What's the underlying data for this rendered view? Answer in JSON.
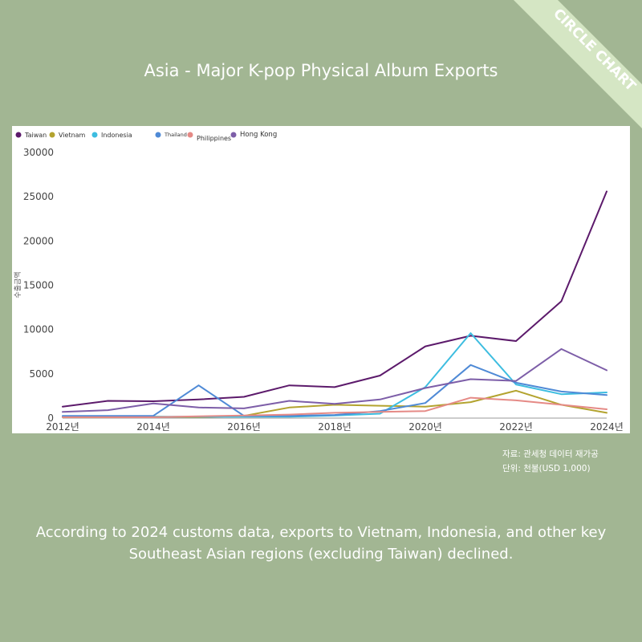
{
  "brand": {
    "ribbon_label": "CIRCLE CHART",
    "ribbon_color": "#d5e6c4"
  },
  "title": "Asia - Major K-pop Physical Album Exports",
  "chart_data": {
    "type": "line",
    "title": "",
    "xlabel": "",
    "ylabel": "수출금액",
    "x": [
      2012,
      2013,
      2014,
      2015,
      2016,
      2017,
      2018,
      2019,
      2020,
      2021,
      2022,
      2023,
      2024
    ],
    "x_tick_labels": [
      "2012년",
      "2014년",
      "2016년",
      "2018년",
      "2020년",
      "2022년",
      "2024년"
    ],
    "y_ticks": [
      0,
      5000,
      10000,
      15000,
      20000,
      25000,
      30000
    ],
    "ylim": [
      0,
      30000
    ],
    "grid": false,
    "legend_position": "top-left",
    "series": [
      {
        "name": "Taiwan",
        "color": "#5c1a6b",
        "values": [
          1300,
          1950,
          1900,
          2100,
          2400,
          3700,
          3500,
          4800,
          8100,
          9300,
          8700,
          13200,
          25600
        ]
      },
      {
        "name": "Vietnam",
        "color": "#b3a32f",
        "values": [
          100,
          100,
          150,
          100,
          250,
          1200,
          1500,
          1400,
          1300,
          1800,
          3100,
          1500,
          600
        ]
      },
      {
        "name": "Indonesia",
        "color": "#3dbde0",
        "values": [
          150,
          150,
          150,
          150,
          150,
          150,
          300,
          500,
          3500,
          9600,
          3800,
          2700,
          2900
        ]
      },
      {
        "name": "Thailand",
        "color": "#4f8ad6",
        "values": [
          250,
          250,
          250,
          3700,
          250,
          250,
          350,
          800,
          1700,
          6000,
          4000,
          3000,
          2600
        ]
      },
      {
        "name": "Philippines",
        "color": "#e58a86",
        "values": [
          100,
          100,
          100,
          200,
          300,
          400,
          600,
          700,
          800,
          2300,
          2000,
          1500,
          1000
        ]
      },
      {
        "name": "Hong Kong",
        "color": "#7d5ea8",
        "values": [
          700,
          900,
          1650,
          1200,
          1100,
          1950,
          1600,
          2100,
          3400,
          4400,
          4200,
          7800,
          5400
        ]
      }
    ]
  },
  "source": {
    "line1": "자료: 관세청 데이터 재가공",
    "line2": "단위: 천불(USD 1,000)"
  },
  "caption": {
    "line1": "According to 2024 customs data, exports to Vietnam, Indonesia, and other key",
    "line2": "Southeast Asian regions (excluding Taiwan) declined."
  }
}
